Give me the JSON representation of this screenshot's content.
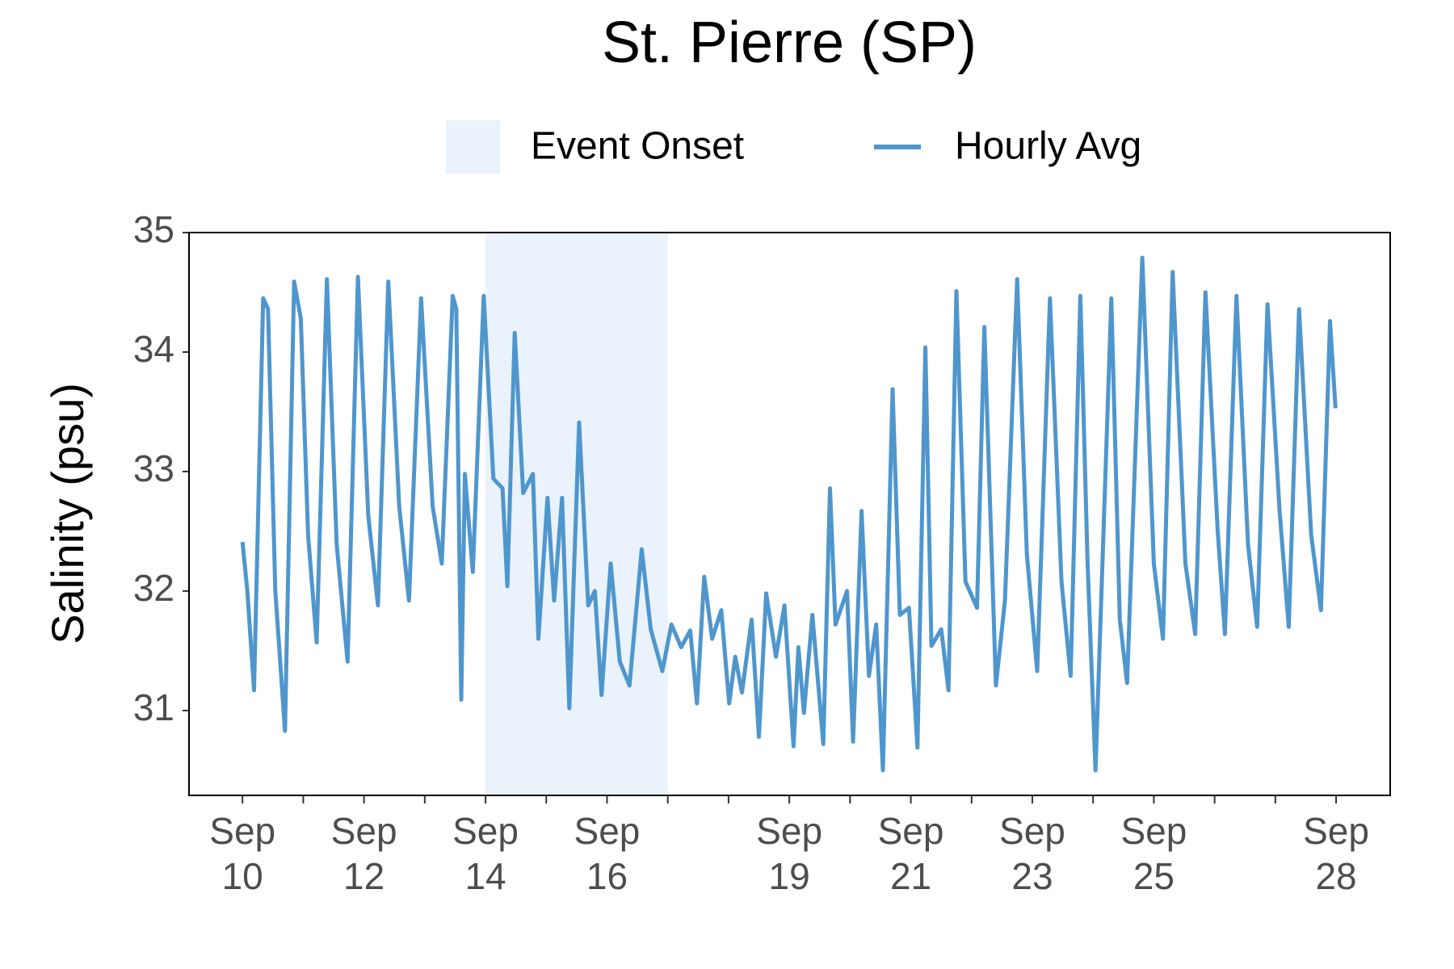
{
  "chart_data": {
    "type": "line",
    "title": "St. Pierre (SP)",
    "ylabel": "Salinity (psu)",
    "xlim": [
      9.12,
      28.89
    ],
    "ylim": [
      30.29,
      35
    ],
    "yticks": [
      31,
      32,
      33,
      34,
      35
    ],
    "xticks": [
      {
        "value": 10,
        "label": "Sep 10"
      },
      {
        "value": 12,
        "label": "Sep 12"
      },
      {
        "value": 14,
        "label": "Sep 14"
      },
      {
        "value": 16,
        "label": "Sep 16"
      },
      {
        "value": 19,
        "label": "Sep 19"
      },
      {
        "value": 21,
        "label": "Sep 21"
      },
      {
        "value": 23,
        "label": "Sep 23"
      },
      {
        "value": 25,
        "label": "Sep 25"
      },
      {
        "value": 28,
        "label": "Sep 28"
      }
    ],
    "xminor": [
      11,
      13,
      15,
      17,
      18,
      20,
      22,
      24,
      26,
      27
    ],
    "grid": false,
    "legend": "top",
    "shade": {
      "name": "Event Onset",
      "color": "#eaf2fb",
      "range": [
        14,
        17
      ]
    },
    "series": [
      {
        "name": "Hourly Avg",
        "color": "#4f96cd",
        "x": [
          10.0,
          10.08,
          10.19,
          10.34,
          10.42,
          10.54,
          10.7,
          10.85,
          10.96,
          11.08,
          11.22,
          11.39,
          11.55,
          11.73,
          11.9,
          12.07,
          12.23,
          12.4,
          12.58,
          12.74,
          12.94,
          13.13,
          13.28,
          13.46,
          13.52,
          13.6,
          13.66,
          13.79,
          13.97,
          14.13,
          14.28,
          14.36,
          14.48,
          14.62,
          14.78,
          14.87,
          15.02,
          15.13,
          15.26,
          15.38,
          15.54,
          15.69,
          15.8,
          15.91,
          16.06,
          16.21,
          16.37,
          16.57,
          16.72,
          16.91,
          17.06,
          17.22,
          17.37,
          17.48,
          17.6,
          17.73,
          17.88,
          18.01,
          18.11,
          18.22,
          18.38,
          18.5,
          18.62,
          18.78,
          18.92,
          19.07,
          19.15,
          19.24,
          19.38,
          19.56,
          19.67,
          19.76,
          19.95,
          20.05,
          20.19,
          20.31,
          20.43,
          20.54,
          20.7,
          20.82,
          20.97,
          21.11,
          21.24,
          21.34,
          21.5,
          21.62,
          21.75,
          21.9,
          22.09,
          22.21,
          22.4,
          22.55,
          22.75,
          22.91,
          23.08,
          23.29,
          23.48,
          23.63,
          23.79,
          23.91,
          24.04,
          24.3,
          24.44,
          24.56,
          24.81,
          25.0,
          25.15,
          25.31,
          25.52,
          25.68,
          25.85,
          26.05,
          26.17,
          26.36,
          26.55,
          26.7,
          26.87,
          27.07,
          27.22,
          27.39,
          27.59,
          27.75,
          27.9,
          27.99
        ],
        "values": [
          32.41,
          32.0,
          31.17,
          34.45,
          34.36,
          32.0,
          30.83,
          34.59,
          34.28,
          32.47,
          31.57,
          34.61,
          32.39,
          31.41,
          34.63,
          32.63,
          31.88,
          34.59,
          32.71,
          31.92,
          34.45,
          32.71,
          32.23,
          34.47,
          34.36,
          31.09,
          32.98,
          32.16,
          34.47,
          32.94,
          32.86,
          32.04,
          34.16,
          32.82,
          32.98,
          31.6,
          32.78,
          31.92,
          32.78,
          31.02,
          33.41,
          31.88,
          32.0,
          31.13,
          32.23,
          31.41,
          31.21,
          32.35,
          31.68,
          31.33,
          31.72,
          31.53,
          31.67,
          31.06,
          32.12,
          31.6,
          31.84,
          31.06,
          31.45,
          31.15,
          31.76,
          30.78,
          31.98,
          31.45,
          31.88,
          30.7,
          31.53,
          30.98,
          31.8,
          30.72,
          32.86,
          31.72,
          32.0,
          30.74,
          32.67,
          31.29,
          31.72,
          30.5,
          33.69,
          31.8,
          31.86,
          30.69,
          34.04,
          31.54,
          31.68,
          31.17,
          34.51,
          32.08,
          31.86,
          34.21,
          31.21,
          31.92,
          34.61,
          32.31,
          31.33,
          34.45,
          32.08,
          31.29,
          34.47,
          32.23,
          30.5,
          34.45,
          31.76,
          31.23,
          34.79,
          32.23,
          31.6,
          34.67,
          32.23,
          31.64,
          34.5,
          32.51,
          31.64,
          34.47,
          32.39,
          31.7,
          34.4,
          32.67,
          31.7,
          34.36,
          32.47,
          31.84,
          34.26,
          33.53
        ]
      }
    ]
  }
}
